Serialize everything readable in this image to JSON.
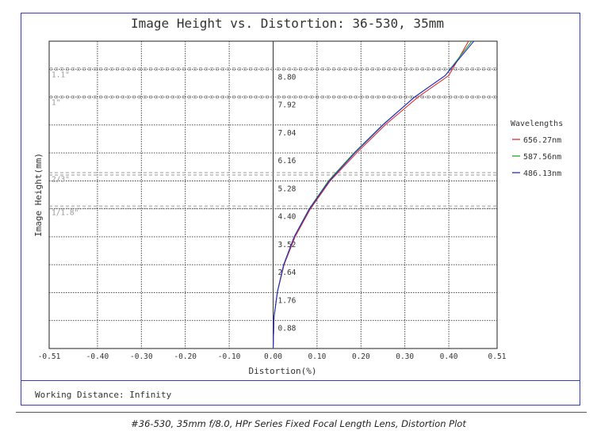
{
  "chart_data": {
    "type": "line",
    "title": "Image Height vs. Distortion: 36-530, 35mm",
    "xlabel": "Distortion(%)",
    "ylabel": "Image Height(mm)",
    "xlim": [
      -0.51,
      0.51
    ],
    "ylim": [
      0,
      9.68
    ],
    "x_ticks": [
      "-0.51",
      "-0.40",
      "-0.30",
      "-0.20",
      "-0.10",
      "0.00",
      "0.10",
      "0.20",
      "0.30",
      "0.40",
      "0.51"
    ],
    "x_tick_values": [
      -0.51,
      -0.4,
      -0.3,
      -0.2,
      -0.1,
      0.0,
      0.1,
      0.2,
      0.3,
      0.4,
      0.51
    ],
    "y_ticks": [
      "0.88",
      "1.76",
      "2.64",
      "3.52",
      "4.40",
      "5.28",
      "6.16",
      "7.04",
      "7.92",
      "8.80"
    ],
    "y_tick_values": [
      0.88,
      1.76,
      2.64,
      3.52,
      4.4,
      5.28,
      6.16,
      7.04,
      7.92,
      8.8
    ],
    "sensor_markers": [
      {
        "label": "1.1\"",
        "value": 8.8
      },
      {
        "label": "1\"",
        "value": 7.92
      },
      {
        "label": "2/3\"",
        "value": 5.5
      },
      {
        "label": "1/1.8\"",
        "value": 4.45
      }
    ],
    "legend_title": "Wavelengths",
    "legend_position": "right",
    "grid": true,
    "series": [
      {
        "name": "656.27nm",
        "color": "#e03030",
        "x": [
          0.0,
          0.002,
          0.01,
          0.025,
          0.05,
          0.085,
          0.13,
          0.19,
          0.255,
          0.33,
          0.4,
          0.445
        ],
        "y": [
          0.0,
          1.0,
          1.8,
          2.64,
          3.52,
          4.4,
          5.28,
          6.16,
          7.04,
          7.92,
          8.6,
          9.68
        ]
      },
      {
        "name": "587.56nm",
        "color": "#2aa02a",
        "x": [
          0.0,
          0.002,
          0.01,
          0.024,
          0.048,
          0.082,
          0.126,
          0.184,
          0.249,
          0.322,
          0.392,
          0.452
        ],
        "y": [
          0.0,
          1.0,
          1.8,
          2.64,
          3.52,
          4.4,
          5.28,
          6.16,
          7.04,
          7.92,
          8.6,
          9.68
        ]
      },
      {
        "name": "486.13nm",
        "color": "#2a2ad0",
        "x": [
          0.0,
          0.002,
          0.01,
          0.024,
          0.048,
          0.083,
          0.128,
          0.186,
          0.25,
          0.322,
          0.392,
          0.457
        ],
        "y": [
          0.0,
          1.0,
          1.8,
          2.64,
          3.52,
          4.4,
          5.28,
          6.16,
          7.04,
          7.92,
          8.6,
          9.68
        ]
      }
    ]
  },
  "footer": {
    "working_distance": "Working Distance: Infinity"
  },
  "caption": "#36-530, 35mm f/8.0, HPr Series Fixed Focal Length Lens, Distortion Plot"
}
